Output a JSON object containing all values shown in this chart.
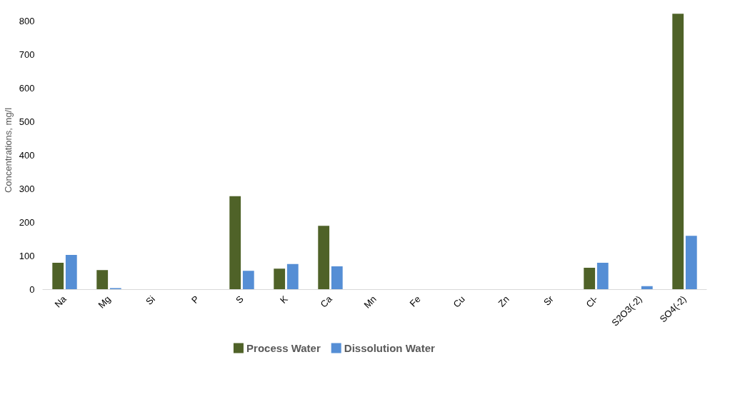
{
  "chart_data": {
    "type": "bar",
    "ylabel": "Concentrations, mg/l",
    "categories": [
      "Na",
      "Mg",
      "Si",
      "P",
      "S",
      "K",
      "Ca",
      "Mn",
      "Fe",
      "Cu",
      "Zn",
      "Sr",
      "Cl-",
      "S2O3(-2)",
      "SO4(-2)"
    ],
    "series": [
      {
        "name": "Process Water",
        "color": "#4f6228",
        "values": [
          80,
          58,
          0,
          0,
          278,
          62,
          190,
          0,
          0,
          0,
          0,
          0,
          65,
          0,
          822
        ]
      },
      {
        "name": "Dissolution Water",
        "color": "#558ed5",
        "values": [
          103,
          4,
          0,
          0,
          56,
          76,
          69,
          0,
          0,
          0,
          0,
          0,
          80,
          10,
          160
        ]
      }
    ],
    "ylim": [
      0,
      830
    ],
    "yticks": [
      0,
      100,
      200,
      300,
      400,
      500,
      600,
      700,
      800
    ],
    "grid": false,
    "legend": "bottom"
  }
}
